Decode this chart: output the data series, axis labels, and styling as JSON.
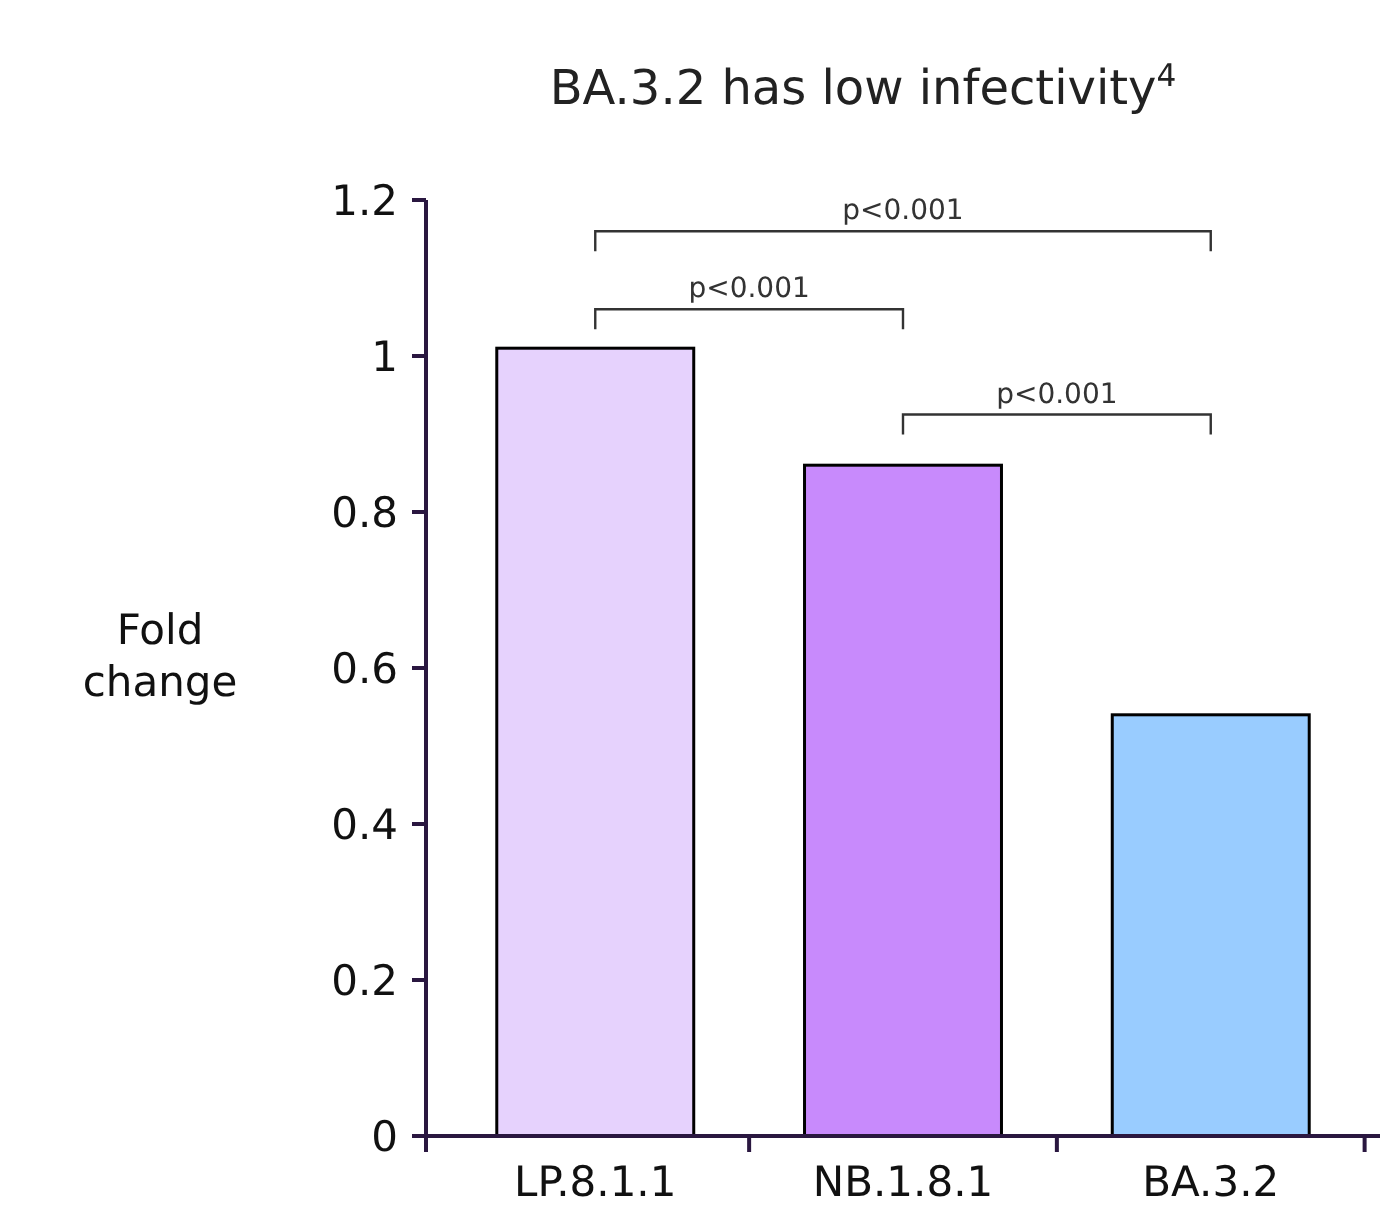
{
  "chart_data": {
    "type": "bar",
    "title": "BA.3.2 has low infectivity$^{4}$",
    "ylabel": "Fold change",
    "categories": [
      "LP.8.1.1",
      "NB.1.8.1",
      "BA.3.2"
    ],
    "values": [
      1.01,
      0.86,
      0.54
    ],
    "colors": [
      "#e6d2fd",
      "#c88afc",
      "#99ccff"
    ],
    "ylim": [
      0,
      1.2
    ],
    "yticks": [
      0,
      0.2,
      0.4,
      0.6,
      0.8,
      1,
      1.2
    ],
    "grid": false,
    "annotations": [
      "p<0.001",
      "p<0.001",
      "p<0.001"
    ]
  }
}
